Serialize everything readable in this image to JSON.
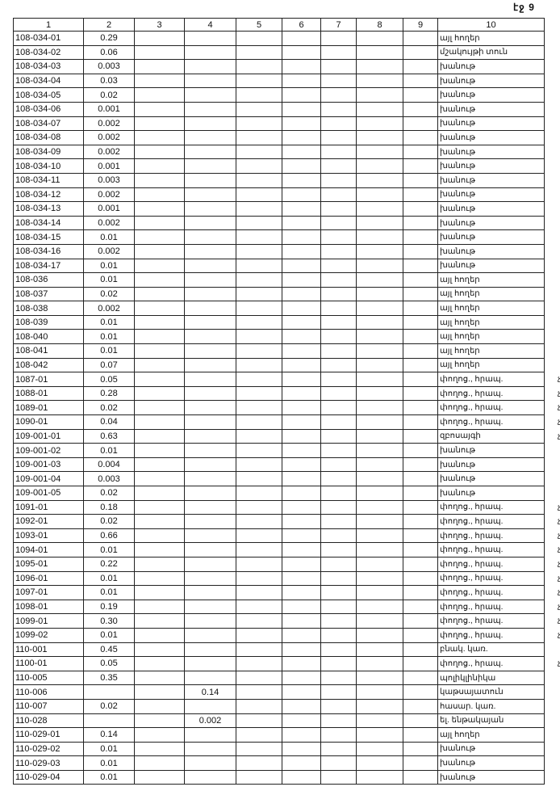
{
  "page_number": "էջ 9",
  "columns": [
    "1",
    "2",
    "3",
    "4",
    "5",
    "6",
    "7",
    "8",
    "9",
    "10"
  ],
  "rows": [
    {
      "c1": "108-034-01",
      "c2": "0.29",
      "c4": "",
      "c10": "այլ հողեր",
      "mark": ""
    },
    {
      "c1": "108-034-02",
      "c2": "0.06",
      "c4": "",
      "c10": "մշակույթի տուն",
      "mark": ""
    },
    {
      "c1": "108-034-03",
      "c2": "0.003",
      "c4": "",
      "c10": "խանութ",
      "mark": ""
    },
    {
      "c1": "108-034-04",
      "c2": "0.03",
      "c4": "",
      "c10": "խանութ",
      "mark": ""
    },
    {
      "c1": "108-034-05",
      "c2": "0.02",
      "c4": "",
      "c10": "խանութ",
      "mark": ""
    },
    {
      "c1": "108-034-06",
      "c2": "0.001",
      "c4": "",
      "c10": "խանութ",
      "mark": ""
    },
    {
      "c1": "108-034-07",
      "c2": "0.002",
      "c4": "",
      "c10": "խանութ",
      "mark": ""
    },
    {
      "c1": "108-034-08",
      "c2": "0.002",
      "c4": "",
      "c10": "խանութ",
      "mark": ""
    },
    {
      "c1": "108-034-09",
      "c2": "0.002",
      "c4": "",
      "c10": "խանութ",
      "mark": ""
    },
    {
      "c1": "108-034-10",
      "c2": "0.001",
      "c4": "",
      "c10": "խանութ",
      "mark": ""
    },
    {
      "c1": "108-034-11",
      "c2": "0.003",
      "c4": "",
      "c10": "խանութ",
      "mark": ""
    },
    {
      "c1": "108-034-12",
      "c2": "0.002",
      "c4": "",
      "c10": "խանութ",
      "mark": ""
    },
    {
      "c1": "108-034-13",
      "c2": "0.001",
      "c4": "",
      "c10": "խանութ",
      "mark": ""
    },
    {
      "c1": "108-034-14",
      "c2": "0.002",
      "c4": "",
      "c10": "խանութ",
      "mark": ""
    },
    {
      "c1": "108-034-15",
      "c2": "0.01",
      "c4": "",
      "c10": "խանութ",
      "mark": ""
    },
    {
      "c1": "108-034-16",
      "c2": "0.002",
      "c4": "",
      "c10": "խանութ",
      "mark": ""
    },
    {
      "c1": "108-034-17",
      "c2": "0.01",
      "c4": "",
      "c10": "խանութ",
      "mark": ""
    },
    {
      "c1": "108-036",
      "c2": "0.01",
      "c4": "",
      "c10": "այլ հողեր",
      "mark": ""
    },
    {
      "c1": "108-037",
      "c2": "0.02",
      "c4": "",
      "c10": "այլ հողեր",
      "mark": ""
    },
    {
      "c1": "108-038",
      "c2": "0.002",
      "c4": "",
      "c10": "այլ հողեր",
      "mark": ""
    },
    {
      "c1": "108-039",
      "c2": "0.01",
      "c4": "",
      "c10": "այլ հողեր",
      "mark": ""
    },
    {
      "c1": "108-040",
      "c2": "0.01",
      "c4": "",
      "c10": "այլ հողեր",
      "mark": ""
    },
    {
      "c1": "108-041",
      "c2": "0.01",
      "c4": "",
      "c10": "այլ հողեր",
      "mark": ""
    },
    {
      "c1": "108-042",
      "c2": "0.07",
      "c4": "",
      "c10": "այլ հողեր",
      "mark": ""
    },
    {
      "c1": "1087-01",
      "c2": "0.05",
      "c4": "",
      "c10": "փողոց., հրապ.",
      "mark": "չմ"
    },
    {
      "c1": "1088-01",
      "c2": "0.28",
      "c4": "",
      "c10": "փողոց., հրապ.",
      "mark": "չմ"
    },
    {
      "c1": "1089-01",
      "c2": "0.02",
      "c4": "",
      "c10": "փողոց., հրապ.",
      "mark": "չմ"
    },
    {
      "c1": "1090-01",
      "c2": "0.04",
      "c4": "",
      "c10": "փողոց., հրապ.",
      "mark": "չմ"
    },
    {
      "c1": "109-001-01",
      "c2": "0.63",
      "c4": "",
      "c10": "զբոսայգի",
      "mark": "չմ"
    },
    {
      "c1": "109-001-02",
      "c2": "0.01",
      "c4": "",
      "c10": "խանութ",
      "mark": ""
    },
    {
      "c1": "109-001-03",
      "c2": "0.004",
      "c4": "",
      "c10": "խանութ",
      "mark": ""
    },
    {
      "c1": "109-001-04",
      "c2": "0.003",
      "c4": "",
      "c10": "խանութ",
      "mark": ""
    },
    {
      "c1": "109-001-05",
      "c2": "0.02",
      "c4": "",
      "c10": "խանութ",
      "mark": ""
    },
    {
      "c1": "1091-01",
      "c2": "0.18",
      "c4": "",
      "c10": "փողոց., հրապ.",
      "mark": "չմ"
    },
    {
      "c1": "1092-01",
      "c2": "0.02",
      "c4": "",
      "c10": "փողոց., հրապ.",
      "mark": "չմ"
    },
    {
      "c1": "1093-01",
      "c2": "0.66",
      "c4": "",
      "c10": "փողոց., հրապ.",
      "mark": "չմ"
    },
    {
      "c1": "1094-01",
      "c2": "0.01",
      "c4": "",
      "c10": "փողոց., հրապ.",
      "mark": "չմ"
    },
    {
      "c1": "1095-01",
      "c2": "0.22",
      "c4": "",
      "c10": "փողոց., հրապ.",
      "mark": "չմ"
    },
    {
      "c1": "1096-01",
      "c2": "0.01",
      "c4": "",
      "c10": "փողոց., հրապ.",
      "mark": "չմ"
    },
    {
      "c1": "1097-01",
      "c2": "0.01",
      "c4": "",
      "c10": "փողոց., հրապ.",
      "mark": "չմ"
    },
    {
      "c1": "1098-01",
      "c2": "0.19",
      "c4": "",
      "c10": "փողոց., հրապ.",
      "mark": "չմ"
    },
    {
      "c1": "1099-01",
      "c2": "0.30",
      "c4": "",
      "c10": "փողոց., հրապ.",
      "mark": "չմ"
    },
    {
      "c1": "1099-02",
      "c2": "0.01",
      "c4": "",
      "c10": "փողոց., հրապ.",
      "mark": "չմ"
    },
    {
      "c1": "110-001",
      "c2": "0.45",
      "c4": "",
      "c10": "բնակ. կառ.",
      "mark": ""
    },
    {
      "c1": "1100-01",
      "c2": "0.05",
      "c4": "",
      "c10": "փողոց., հրապ.",
      "mark": "չմ"
    },
    {
      "c1": "110-005",
      "c2": "0.35",
      "c4": "",
      "c10": "պոլիկլինիկա",
      "mark": ""
    },
    {
      "c1": "110-006",
      "c2": "",
      "c4": "0.14",
      "c10": "կաթսայատուն",
      "mark": ""
    },
    {
      "c1": "110-007",
      "c2": "0.02",
      "c4": "",
      "c10": "հասար. կառ.",
      "mark": ""
    },
    {
      "c1": "110-028",
      "c2": "",
      "c4": "0.002",
      "c10": "ել. ենթակայան",
      "mark": ""
    },
    {
      "c1": "110-029-01",
      "c2": "0.14",
      "c4": "",
      "c10": "այլ հողեր",
      "mark": ""
    },
    {
      "c1": "110-029-02",
      "c2": "0.01",
      "c4": "",
      "c10": "խանութ",
      "mark": ""
    },
    {
      "c1": "110-029-03",
      "c2": "0.01",
      "c4": "",
      "c10": "խանութ",
      "mark": ""
    },
    {
      "c1": "110-029-04",
      "c2": "0.01",
      "c4": "",
      "c10": "խանութ",
      "mark": ""
    }
  ]
}
